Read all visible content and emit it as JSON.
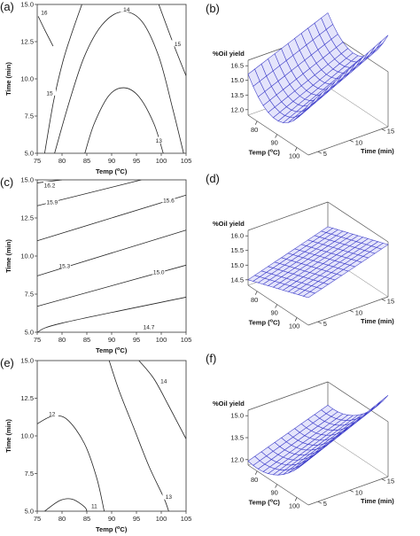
{
  "panels": [
    {
      "id": "a",
      "label": "(a)",
      "chart_data": {
        "type": "contour",
        "xlabel": "Temp (°C)",
        "ylabel": "Time (min)",
        "xlim": [
          75,
          105
        ],
        "ylim": [
          5,
          15
        ],
        "xticks": [
          "75",
          "80",
          "85",
          "90",
          "95",
          "100",
          "105"
        ],
        "yticks": [
          "5.0",
          "7.5",
          "10.0",
          "12.5",
          "15.0"
        ],
        "contours": [
          {
            "level": "16",
            "points": [
              [
                75.2,
                14.2
              ],
              [
                76.5,
                13.3
              ],
              [
                78.2,
                12.2
              ]
            ]
          },
          {
            "level": "15",
            "points": [
              [
                76.5,
                5.0
              ],
              [
                78.3,
                8.5
              ],
              [
                80.2,
                11.2
              ],
              [
                82,
                13.1
              ],
              [
                84,
                15.0
              ]
            ]
          },
          {
            "level": "15",
            "points": [
              [
                99.5,
                15.0
              ],
              [
                102.5,
                12.3
              ],
              [
                105,
                10.2
              ]
            ]
          },
          {
            "level": "14",
            "points": [
              [
                78.5,
                5.0
              ],
              [
                81.5,
                8.5
              ],
              [
                84.5,
                11.5
              ],
              [
                88,
                13.6
              ],
              [
                92,
                14.5
              ],
              [
                96,
                13.9
              ],
              [
                99.5,
                11.5
              ],
              [
                102.3,
                8.0
              ],
              [
                104.5,
                5.0
              ]
            ]
          },
          {
            "level": "13",
            "points": [
              [
                84.6,
                5.0
              ],
              [
                86.5,
                7.0
              ],
              [
                89.5,
                8.9
              ],
              [
                92.5,
                9.4
              ],
              [
                95.5,
                8.8
              ],
              [
                98.5,
                7.0
              ],
              [
                100.4,
                5.0
              ]
            ]
          }
        ],
        "contour_labels": [
          {
            "text": "16",
            "x": 76.4,
            "y": 14.4
          },
          {
            "text": "15",
            "x": 77.5,
            "y": 9.0
          },
          {
            "text": "15",
            "x": 103.3,
            "y": 12.3
          },
          {
            "text": "14",
            "x": 93.0,
            "y": 14.6
          },
          {
            "text": "13",
            "x": 99.5,
            "y": 5.8
          }
        ]
      }
    },
    {
      "id": "b",
      "label": "(b)",
      "chart_data": {
        "type": "surface",
        "zlabel": "%Oil yield",
        "xlabel": "Temp (°C)",
        "ylabel": "Time (min)",
        "xticks": [
          "80",
          "90",
          "100"
        ],
        "yticks": [
          "5",
          "10",
          "15"
        ],
        "zticks": [
          "12.0",
          "13.5",
          "15.0",
          "16.5"
        ]
      }
    },
    {
      "id": "c",
      "label": "(c)",
      "chart_data": {
        "type": "contour",
        "xlabel": "Temp (°C)",
        "ylabel": "Time (min)",
        "xlim": [
          75,
          105
        ],
        "ylim": [
          5,
          15
        ],
        "xticks": [
          "75",
          "80",
          "85",
          "90",
          "95",
          "100",
          "105"
        ],
        "yticks": [
          "5.0",
          "7.5",
          "10.0",
          "12.5",
          "15.0"
        ],
        "contours": [
          {
            "level": "16.2",
            "points": [
              [
                75,
                14.8
              ],
              [
                80,
                15.0
              ]
            ]
          },
          {
            "level": "15.9",
            "points": [
              [
                75,
                13.3
              ],
              [
                96,
                15.0
              ]
            ]
          },
          {
            "level": "15.6",
            "points": [
              [
                75,
                11.0
              ],
              [
                105,
                14.0
              ]
            ]
          },
          {
            "level": "15.3",
            "points": [
              [
                75,
                8.7
              ],
              [
                105,
                11.7
              ]
            ]
          },
          {
            "level": "15.0",
            "points": [
              [
                75,
                6.7
              ],
              [
                105,
                9.4
              ]
            ]
          },
          {
            "level": "14.7",
            "points": [
              [
                75,
                5.0
              ],
              [
                80,
                5.6
              ],
              [
                105,
                7.3
              ]
            ]
          }
        ],
        "contour_labels": [
          {
            "text": "16.2",
            "x": 77.5,
            "y": 14.6
          },
          {
            "text": "15.9",
            "x": 78.0,
            "y": 13.5
          },
          {
            "text": "15.6",
            "x": 101.5,
            "y": 13.6
          },
          {
            "text": "15.3",
            "x": 80.5,
            "y": 9.3
          },
          {
            "text": "15.0",
            "x": 99.5,
            "y": 8.9
          },
          {
            "text": "14.7",
            "x": 97.5,
            "y": 5.3
          }
        ]
      }
    },
    {
      "id": "d",
      "label": "(d)",
      "chart_data": {
        "type": "surface",
        "zlabel": "%Oil yield",
        "xlabel": "Temp (°C)",
        "ylabel": "Time (min)",
        "xticks": [
          "80",
          "90",
          "100"
        ],
        "yticks": [
          "5",
          "10",
          "15"
        ],
        "zticks": [
          "14.5",
          "15.0",
          "15.5",
          "16.0"
        ]
      }
    },
    {
      "id": "e",
      "label": "(e)",
      "chart_data": {
        "type": "contour",
        "xlabel": "Temp (°C)",
        "ylabel": "Time (min)",
        "xlim": [
          75,
          105
        ],
        "ylim": [
          5,
          15
        ],
        "xticks": [
          "75",
          "80",
          "85",
          "90",
          "95",
          "100",
          "105"
        ],
        "yticks": [
          "5.0",
          "7.5",
          "10.0",
          "12.5",
          "15.0"
        ],
        "contours": [
          {
            "level": "14",
            "points": [
              [
                95.5,
                15.0
              ],
              [
                98.5,
                13.8
              ],
              [
                101.5,
                12.0
              ],
              [
                105,
                9.8
              ]
            ]
          },
          {
            "level": "13",
            "points": [
              [
                89.5,
                15.0
              ],
              [
                91.5,
                13.0
              ],
              [
                94.5,
                10.5
              ],
              [
                97.5,
                8.0
              ],
              [
                100.5,
                5.9
              ],
              [
                101.5,
                5.0
              ]
            ]
          },
          {
            "level": "12",
            "points": [
              [
                75,
                10.8
              ],
              [
                78,
                11.3
              ],
              [
                81,
                11.1
              ],
              [
                84.5,
                9.5
              ],
              [
                87,
                7.2
              ],
              [
                88.5,
                5.0
              ]
            ]
          },
          {
            "level": "11",
            "points": [
              [
                76.5,
                5.0
              ],
              [
                79.5,
                5.7
              ],
              [
                82,
                5.8
              ],
              [
                84.5,
                5.3
              ],
              [
                85,
                5.0
              ]
            ]
          }
        ],
        "contour_labels": [
          {
            "text": "14",
            "x": 100.5,
            "y": 13.6
          },
          {
            "text": "13",
            "x": 101.5,
            "y": 5.9
          },
          {
            "text": "12",
            "x": 78.0,
            "y": 11.4
          },
          {
            "text": "11",
            "x": 86.5,
            "y": 5.3
          }
        ]
      }
    },
    {
      "id": "f",
      "label": "(f)",
      "chart_data": {
        "type": "surface",
        "zlabel": "%Oil yield",
        "xlabel": "Temp (°C)",
        "ylabel": "Time (min)",
        "xticks": [
          "80",
          "90",
          "100"
        ],
        "yticks": [
          "5",
          "10",
          "15"
        ],
        "zticks": [
          "12.0",
          "13.5",
          "15.0"
        ]
      }
    }
  ]
}
